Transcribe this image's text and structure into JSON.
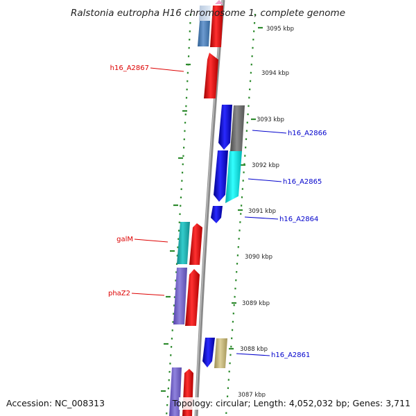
{
  "title": "Ralstonia eutropha H16 chromosome 1, complete genome",
  "footer": {
    "accession": "Accession: NC_008313",
    "summary": "Topology: circular; Length: 4,052,032 bp; Genes: 3,711"
  },
  "kbp_ticks": [
    "3095 kbp",
    "3094 kbp",
    "3093 kbp",
    "3092 kbp",
    "3091 kbp",
    "3090 kbp",
    "3089 kbp",
    "3088 kbp",
    "3087 kbp"
  ],
  "genes_left": [
    "h16_A2867",
    "galM",
    "phaZ2"
  ],
  "genes_right": [
    "h16_A2866",
    "h16_A2865",
    "h16_A2864",
    "h16_A2861"
  ],
  "colors": {
    "label_left": "#dd0000",
    "label_right": "#0000cc",
    "backbone": "#8a8a8a",
    "ring_marks": "#2e8b2e",
    "red": "#ff0000",
    "blue": "#0000ee",
    "gray": "#777777",
    "cyan": "#00e5e5",
    "teal": "#22bbbb",
    "purple": "#7766cc",
    "steelblue": "#4f80b5",
    "tan": "#c8b97a",
    "pink": "#f0a0c8"
  }
}
